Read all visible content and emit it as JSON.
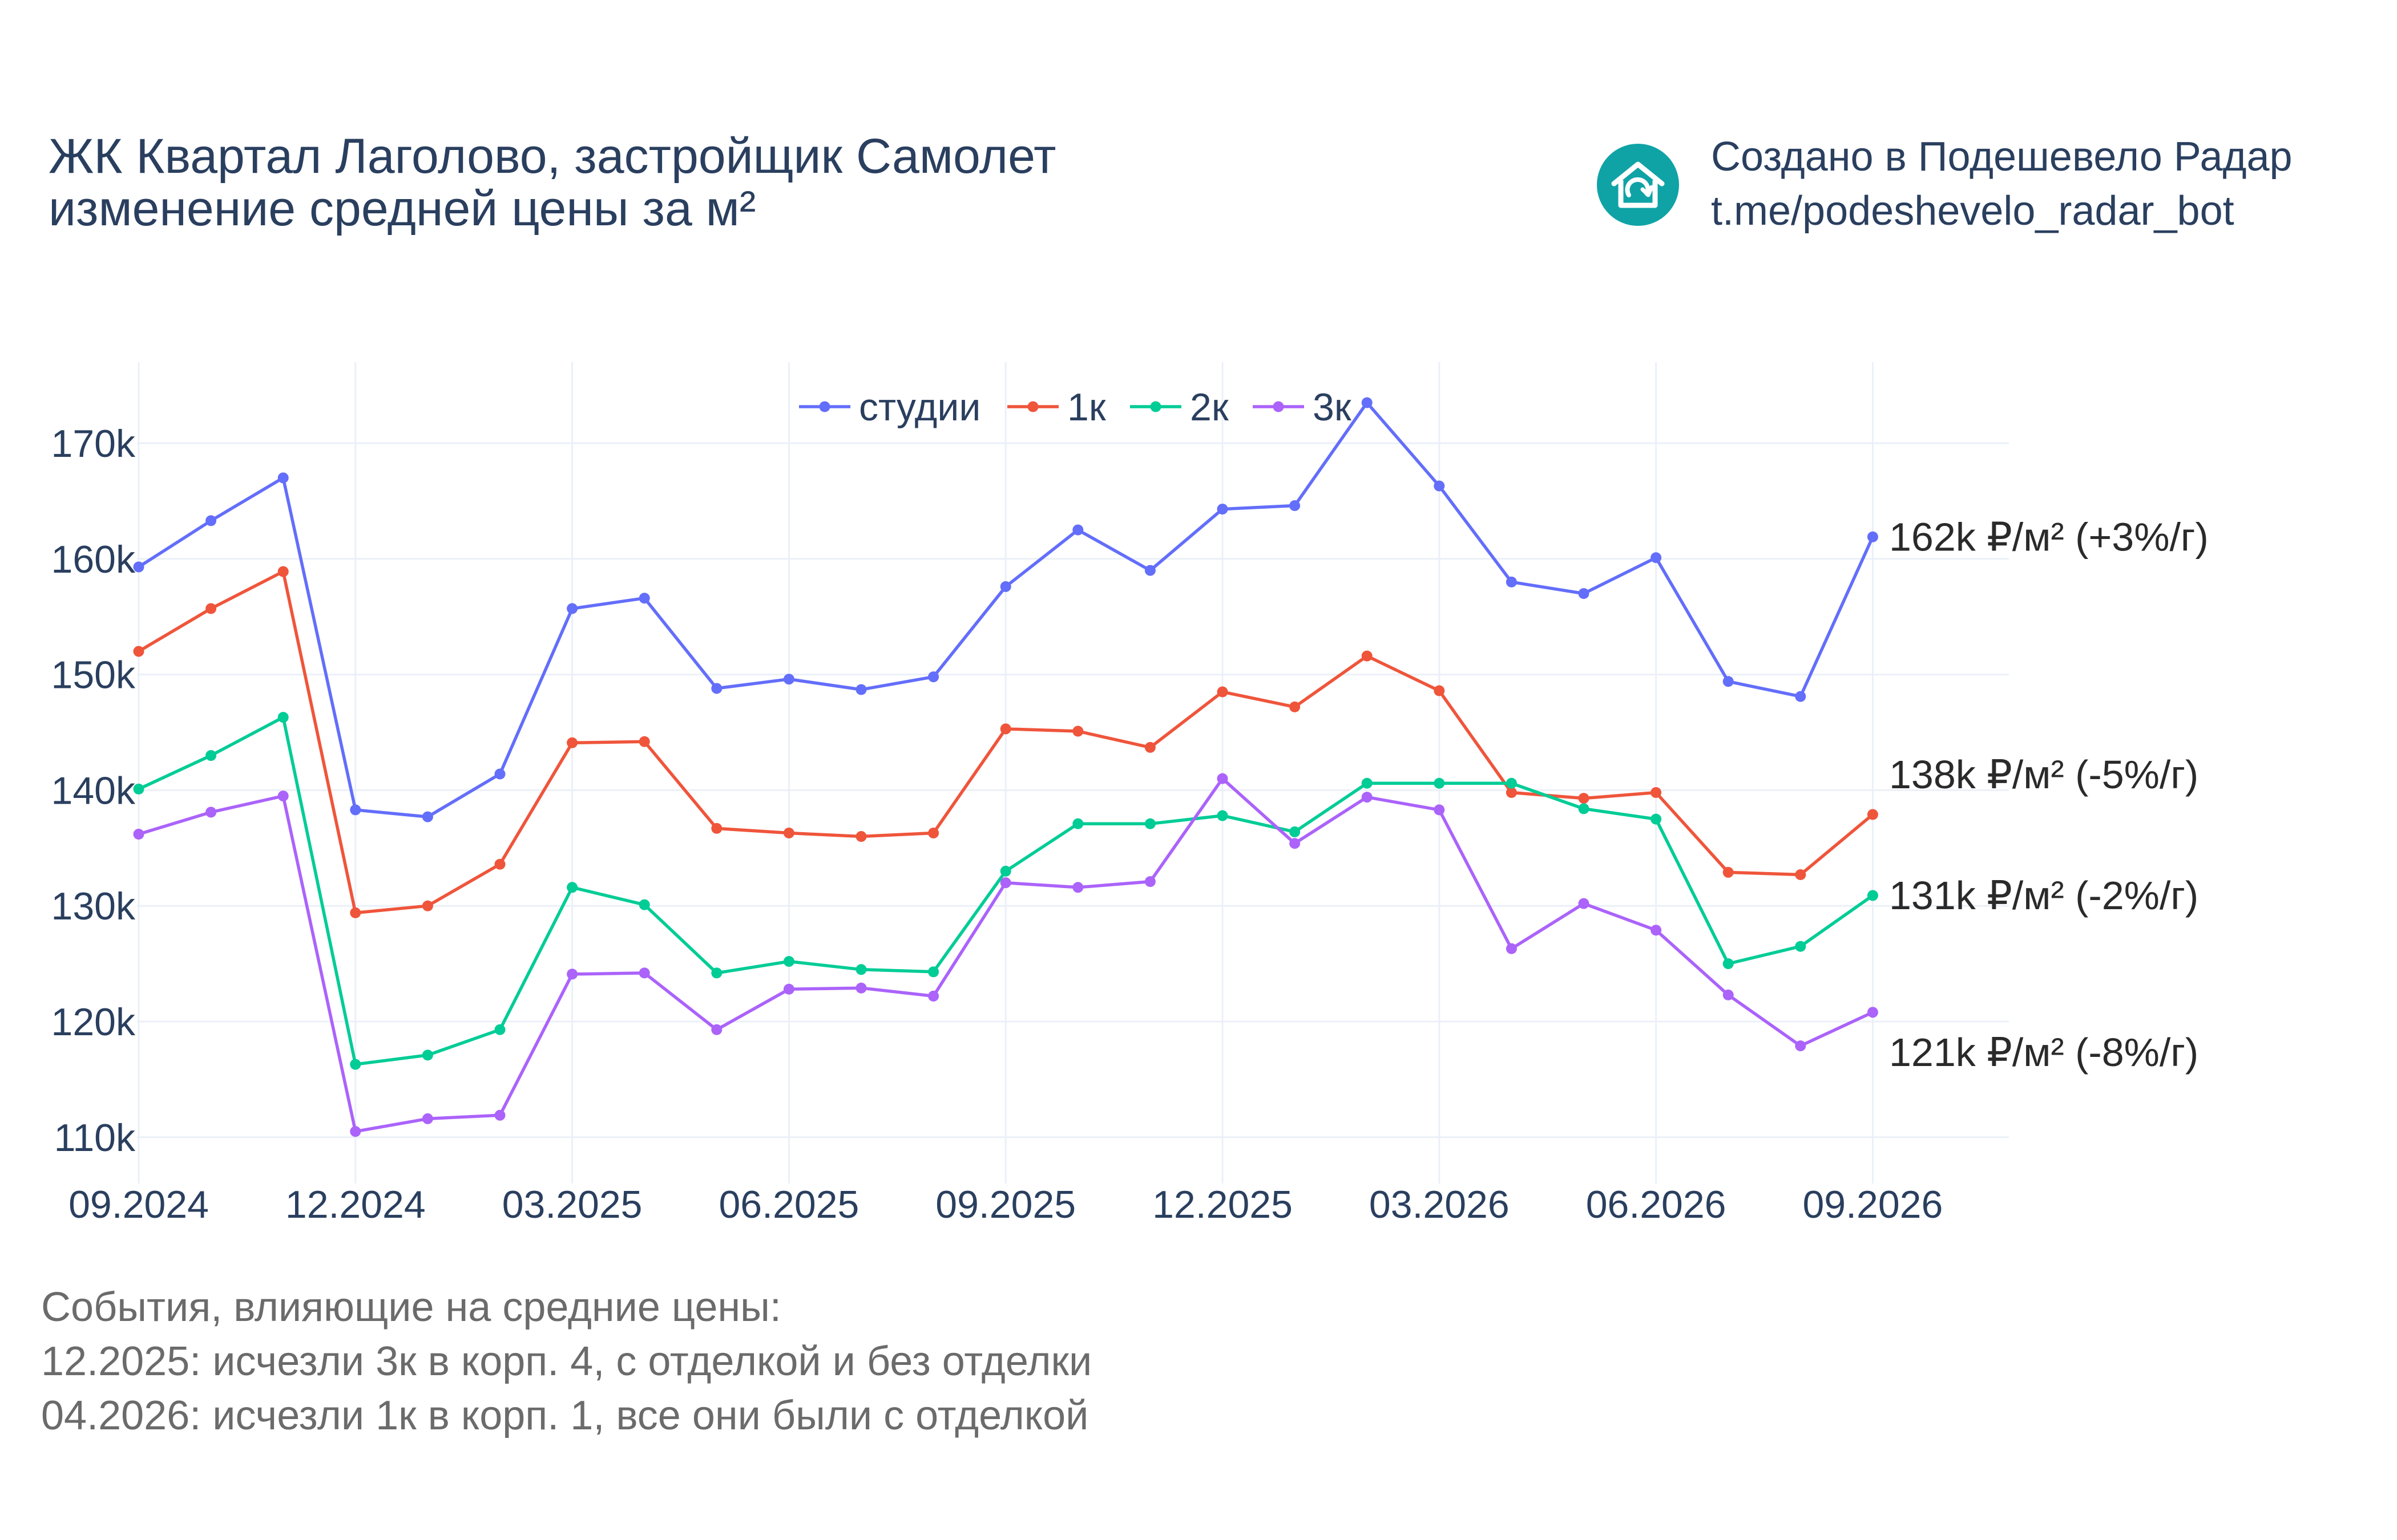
{
  "title_lines": [
    "ЖК Квартал Лаголово, застройщик Самолет",
    "изменение средней цены за м²"
  ],
  "brand": {
    "line1": "Создано в Подешевело Радар",
    "line2": "t.me/podeshevelo_radar_bot",
    "logo_icon": "house-refresh-icon",
    "logo_color": "#0fa3a6"
  },
  "events": {
    "heading": "События, влияющие на средние цены:",
    "items": [
      "12.2025: исчезли 3к в корп. 4, с отделкой и без отделки",
      "04.2026: исчезли 1к в корп. 1, все они были с отделкой"
    ]
  },
  "chart_data": {
    "type": "line",
    "x": [
      "09.2024",
      "10.2024",
      "11.2024",
      "12.2024",
      "01.2025",
      "02.2025",
      "03.2025",
      "04.2025",
      "05.2025",
      "06.2025",
      "07.2025",
      "08.2025",
      "09.2025",
      "10.2025",
      "11.2025",
      "12.2025",
      "01.2026",
      "02.2026",
      "03.2026",
      "04.2026",
      "05.2026",
      "06.2026",
      "07.2026",
      "08.2026",
      "09.2026"
    ],
    "x_ticks": [
      "09.2024",
      "12.2024",
      "03.2025",
      "06.2025",
      "09.2025",
      "12.2025",
      "03.2026",
      "06.2026",
      "09.2026"
    ],
    "y_ticks": [
      110000,
      120000,
      130000,
      140000,
      150000,
      160000,
      170000
    ],
    "y_tick_labels": [
      "110k",
      "120k",
      "130k",
      "140k",
      "150k",
      "160k",
      "170k"
    ],
    "ylim": [
      106000,
      177000
    ],
    "grid": true,
    "legend_position": "top-center",
    "series": [
      {
        "name": "студии",
        "color": "#636efa",
        "values": [
          159300,
          163300,
          167000,
          138300,
          137700,
          141400,
          155700,
          156600,
          148800,
          149600,
          148700,
          149800,
          157600,
          162500,
          159000,
          164300,
          164600,
          173500,
          166300,
          158000,
          157000,
          160100,
          149400,
          148100,
          161900
        ],
        "end_label": "162k ₽/м² (+3%/г)"
      },
      {
        "name": "1к",
        "color": "#ef553b",
        "values": [
          152000,
          155700,
          158900,
          129400,
          130000,
          133600,
          144100,
          144200,
          136700,
          136300,
          136000,
          136300,
          145300,
          145100,
          143700,
          148500,
          147200,
          151600,
          148600,
          139800,
          139300,
          139800,
          132900,
          132700,
          137900
        ],
        "end_label": "138k ₽/м² (-5%/г)"
      },
      {
        "name": "2к",
        "color": "#00cc96",
        "values": [
          140100,
          143000,
          146300,
          116300,
          117100,
          119300,
          131600,
          130100,
          124200,
          125200,
          124500,
          124300,
          133000,
          137100,
          137100,
          137800,
          136400,
          140600,
          140600,
          140600,
          138400,
          137500,
          125000,
          126500,
          130900
        ],
        "end_label": "131k ₽/м² (-2%/г)"
      },
      {
        "name": "3к",
        "color": "#ab63fa",
        "values": [
          136200,
          138100,
          139500,
          110500,
          111600,
          111900,
          124100,
          124200,
          119300,
          122800,
          122900,
          122200,
          132000,
          131600,
          132100,
          141000,
          135400,
          139400,
          138300,
          126300,
          130200,
          127900,
          122300,
          117900,
          120800
        ],
        "end_label": "121k ₽/м² (-8%/г)"
      }
    ]
  }
}
